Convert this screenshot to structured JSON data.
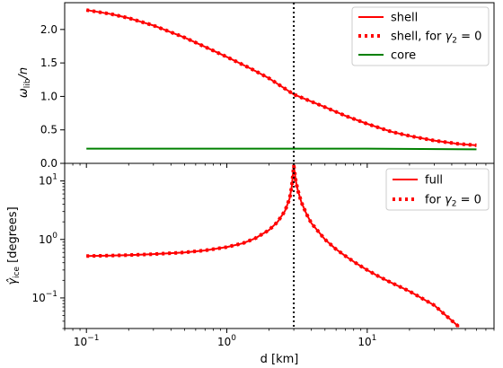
{
  "chart_data": [
    {
      "type": "line",
      "xscale": "log",
      "xlim": [
        0.07,
        80
      ],
      "ylim": [
        0.0,
        2.4
      ],
      "ylabel_main": "ω",
      "ylabel_sub": "lib",
      "ylabel_tail": "/n",
      "yticks": [
        0.0,
        0.5,
        1.0,
        1.5,
        2.0
      ],
      "ytick_labels": [
        "0.0",
        "0.5",
        "1.0",
        "1.5",
        "2.0"
      ],
      "vline_x": 3.0,
      "legend_position": "top-right",
      "grid": false,
      "series": [
        {
          "name": "shell",
          "style": "solid",
          "color": "#ff0000",
          "x": [
            0.1,
            0.15,
            0.2,
            0.3,
            0.5,
            0.7,
            1.0,
            1.5,
            2.0,
            3.0,
            5.0,
            7.0,
            10.0,
            15.0,
            20.0,
            30.0,
            45.0,
            60.0
          ],
          "y": [
            2.29,
            2.23,
            2.17,
            2.06,
            1.88,
            1.74,
            1.59,
            1.41,
            1.27,
            1.03,
            0.84,
            0.71,
            0.59,
            0.47,
            0.41,
            0.34,
            0.29,
            0.27
          ]
        },
        {
          "name": "shell, for",
          "name_math": "γ",
          "name_sub": "2",
          "name_tail": " = 0",
          "style": "dotted",
          "color": "#ff0000",
          "x": [
            0.1,
            0.15,
            0.2,
            0.3,
            0.5,
            0.7,
            1.0,
            1.5,
            2.0,
            3.0,
            5.0,
            7.0,
            10.0,
            15.0,
            20.0,
            30.0,
            45.0,
            60.0
          ],
          "y": [
            2.29,
            2.23,
            2.17,
            2.06,
            1.88,
            1.74,
            1.59,
            1.41,
            1.27,
            1.03,
            0.84,
            0.71,
            0.59,
            0.47,
            0.41,
            0.34,
            0.29,
            0.27
          ]
        },
        {
          "name": "core",
          "style": "solid",
          "color": "#008000",
          "x": [
            0.1,
            1.0,
            10.0,
            60.0
          ],
          "y": [
            0.22,
            0.22,
            0.22,
            0.21
          ]
        }
      ]
    },
    {
      "type": "line",
      "xscale": "log",
      "yscale": "log",
      "xlim": [
        0.07,
        80
      ],
      "ylim": [
        0.03,
        20
      ],
      "xlabel": "d [km]",
      "ylabel_main": "γ̂",
      "ylabel_sub": "ice",
      "ylabel_tail": " [degrees]",
      "xtick_labels": [
        {
          "base": "10",
          "exp": "−1",
          "x": 0.1
        },
        {
          "base": "10",
          "exp": "0",
          "x": 1
        },
        {
          "base": "10",
          "exp": "1",
          "x": 10
        }
      ],
      "ytick_labels": [
        {
          "base": "10",
          "exp": "−1",
          "y": 0.1
        },
        {
          "base": "10",
          "exp": "0",
          "y": 1
        },
        {
          "base": "10",
          "exp": "1",
          "y": 10
        }
      ],
      "vline_x": 3.0,
      "legend_position": "top-right",
      "grid": false,
      "series": [
        {
          "name": "full",
          "style": "solid",
          "color": "#ff0000",
          "x": [
            0.1,
            0.15,
            0.2,
            0.3,
            0.5,
            0.7,
            1.0,
            1.3,
            1.6,
            2.0,
            2.3,
            2.6,
            2.8,
            2.9,
            3.0,
            3.1,
            3.2,
            3.4,
            3.7,
            4.0,
            5.0,
            6.0,
            7.0,
            8.5,
            10.0,
            12.0,
            15.0,
            20.0,
            30.0,
            45.0
          ],
          "y": [
            0.52,
            0.53,
            0.54,
            0.56,
            0.6,
            0.65,
            0.74,
            0.86,
            1.05,
            1.45,
            2.0,
            3.1,
            5.0,
            8.0,
            18.0,
            10.0,
            7.0,
            4.3,
            2.7,
            1.9,
            1.0,
            0.68,
            0.52,
            0.38,
            0.3,
            0.235,
            0.18,
            0.13,
            0.075,
            0.032
          ]
        },
        {
          "name": "for",
          "name_math": "γ",
          "name_sub": "2",
          "name_tail": " = 0",
          "style": "dotted",
          "color": "#ff0000",
          "x": [
            0.1,
            0.15,
            0.2,
            0.3,
            0.5,
            0.7,
            1.0,
            1.3,
            1.6,
            2.0,
            2.3,
            2.6,
            2.8,
            2.9,
            3.0,
            3.1,
            3.2,
            3.4,
            3.7,
            4.0,
            5.0,
            6.0,
            7.0,
            8.5,
            10.0,
            12.0,
            15.0,
            20.0,
            30.0,
            45.0
          ],
          "y": [
            0.52,
            0.53,
            0.54,
            0.56,
            0.6,
            0.65,
            0.74,
            0.86,
            1.05,
            1.45,
            2.0,
            3.1,
            5.0,
            8.0,
            18.0,
            10.0,
            7.0,
            4.3,
            2.7,
            1.9,
            1.0,
            0.68,
            0.52,
            0.38,
            0.3,
            0.235,
            0.18,
            0.13,
            0.075,
            0.032
          ]
        }
      ]
    }
  ]
}
